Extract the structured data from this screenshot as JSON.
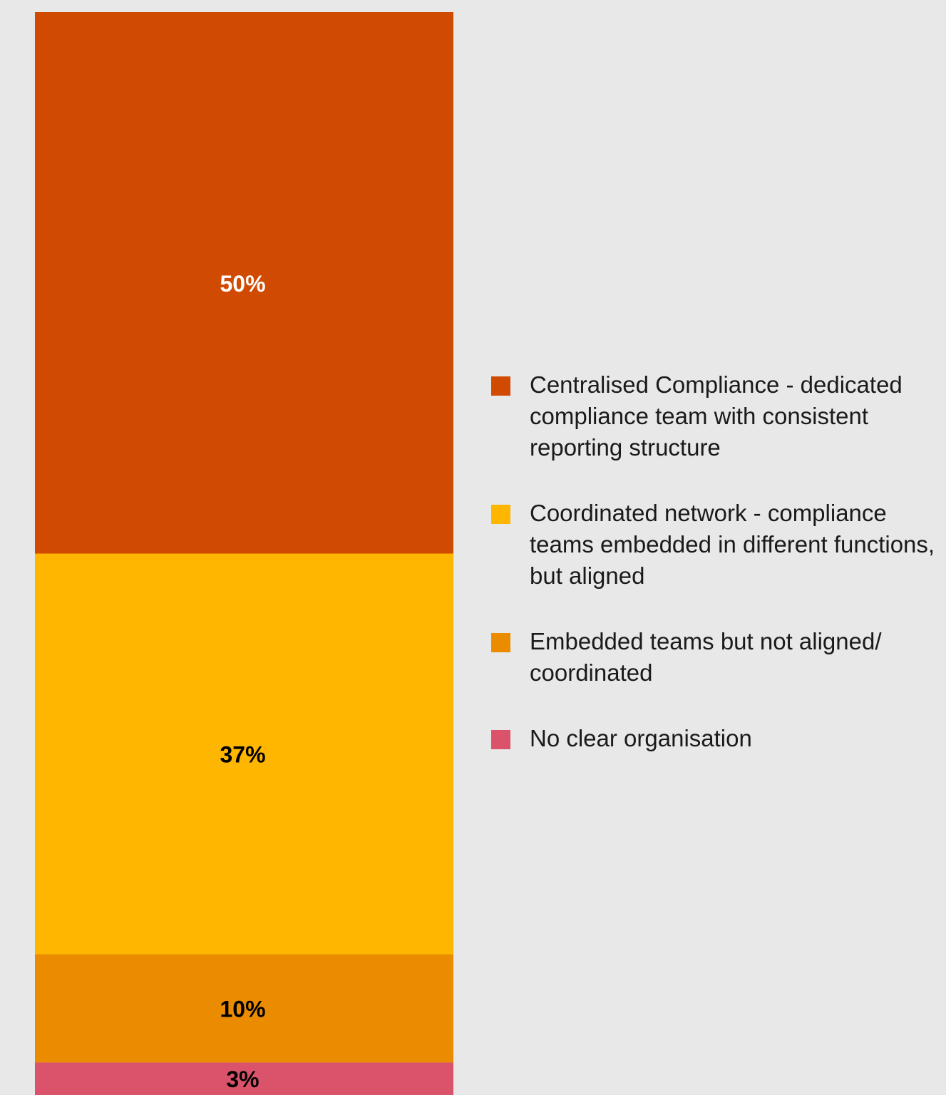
{
  "chart_data": {
    "type": "bar",
    "stacked": true,
    "orientation": "vertical",
    "ylim": [
      0,
      100
    ],
    "series": [
      {
        "name": "Centralised Compliance - dedicated compliance team with consistent reporting structure",
        "value": 50,
        "label": "50%",
        "color": "#d04a02",
        "label_color": "#ffffff"
      },
      {
        "name": "Coordinated network - compliance teams embedded in different functions, but aligned",
        "value": 37,
        "label": "37%",
        "color": "#ffb600",
        "label_color": "#000000"
      },
      {
        "name": "Embedded teams but not aligned/ coordinated",
        "value": 10,
        "label": "10%",
        "color": "#eb8c00",
        "label_color": "#000000"
      },
      {
        "name": "No clear organisation",
        "value": 3,
        "label": "3%",
        "color": "#db536a",
        "label_color": "#000000"
      }
    ],
    "legend_position": "right",
    "grid": false
  }
}
